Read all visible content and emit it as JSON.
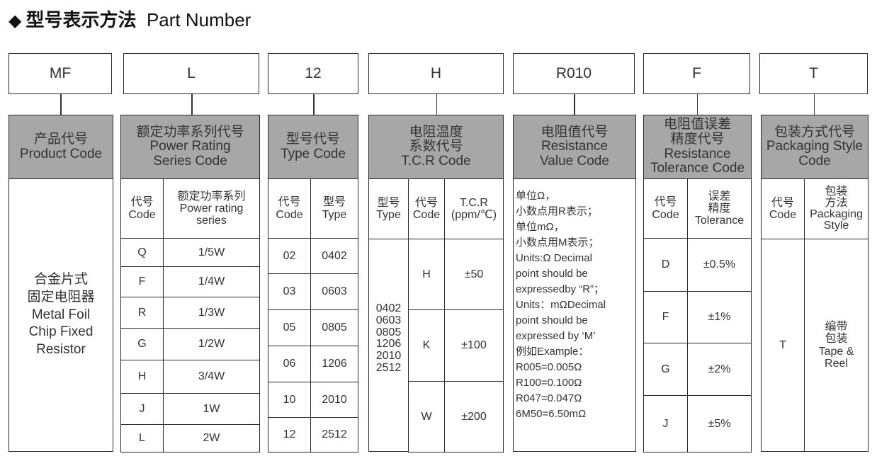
{
  "title": {
    "icon": "diamond-icon",
    "cn": "型号表示方法",
    "en": "Part Number"
  },
  "code_boxes": [
    "MF",
    "L",
    "12",
    "H",
    "R010",
    "F",
    "T"
  ],
  "product": {
    "header": "产品代号\nProduct Code",
    "body": "合金片式\n固定电阻器\nMetal Foil\nChip Fixed\nResistor"
  },
  "power": {
    "header": "额定功率系列代号\nPower Rating\nSeries Code",
    "col_code": "代号\nCode",
    "col_series": "额定功率系列\nPower rating\nseries",
    "rows": [
      [
        "Q",
        "1/5W"
      ],
      [
        "F",
        "1/4W"
      ],
      [
        "R",
        "1/3W"
      ],
      [
        "G",
        "1/2W"
      ],
      [
        "H",
        "3/4W"
      ],
      [
        "J",
        "1W"
      ],
      [
        "L",
        "2W"
      ]
    ]
  },
  "type": {
    "header": "型号代号\nType Code",
    "col_code": "代号\nCode",
    "col_type": "型号\nType",
    "rows": [
      [
        "02",
        "0402"
      ],
      [
        "03",
        "0603"
      ],
      [
        "05",
        "0805"
      ],
      [
        "06",
        "1206"
      ],
      [
        "10",
        "2010"
      ],
      [
        "12",
        "2512"
      ]
    ]
  },
  "tcr": {
    "header": "电阻温度\n系数代号\nT.C.R Code",
    "col_type": "型号\nType",
    "col_code": "代号\nCode",
    "col_tcr": "T.C.R\n(ppm/℃)",
    "types": "0402\n0603\n0805\n1206\n2010\n2512",
    "rows": [
      [
        "H",
        "±50"
      ],
      [
        "K",
        "±100"
      ],
      [
        "W",
        "±200"
      ]
    ]
  },
  "resistance": {
    "header": "电阻值代号\nResistance\nValue Code",
    "body": "单位Ω，\n小数点用R表示；\n单位mΩ，\n小数点用M表示；\nUnits:Ω Decimal\npoint should be\nexpressedby “R”；\nUnits：mΩDecimal\npoint should be\nexpressed by ‘M’\n例如Example：\nR005=0.005Ω\nR100=0.100Ω\nR047=0.047Ω\n6M50=6.50mΩ"
  },
  "tolerance": {
    "header": "电阻值误差\n精度代号\nResistance\nTolerance Code",
    "col_code": "代号\nCode",
    "col_tol": "误差\n精度\nTolerance",
    "rows": [
      [
        "D",
        "±0.5%"
      ],
      [
        "F",
        "±1%"
      ],
      [
        "G",
        "±2%"
      ],
      [
        "J",
        "±5%"
      ]
    ]
  },
  "packaging": {
    "header": "包装方式代号\nPackaging Style\nCode",
    "col_code": "代号\nCode",
    "col_method": "包装\n方法\nPackaging\nStyle",
    "code": "T",
    "method": "编带\n包装\nTape &\nReel"
  },
  "colors": {
    "header_bg": "#a7a7a7",
    "border": "#2a2a2a"
  }
}
